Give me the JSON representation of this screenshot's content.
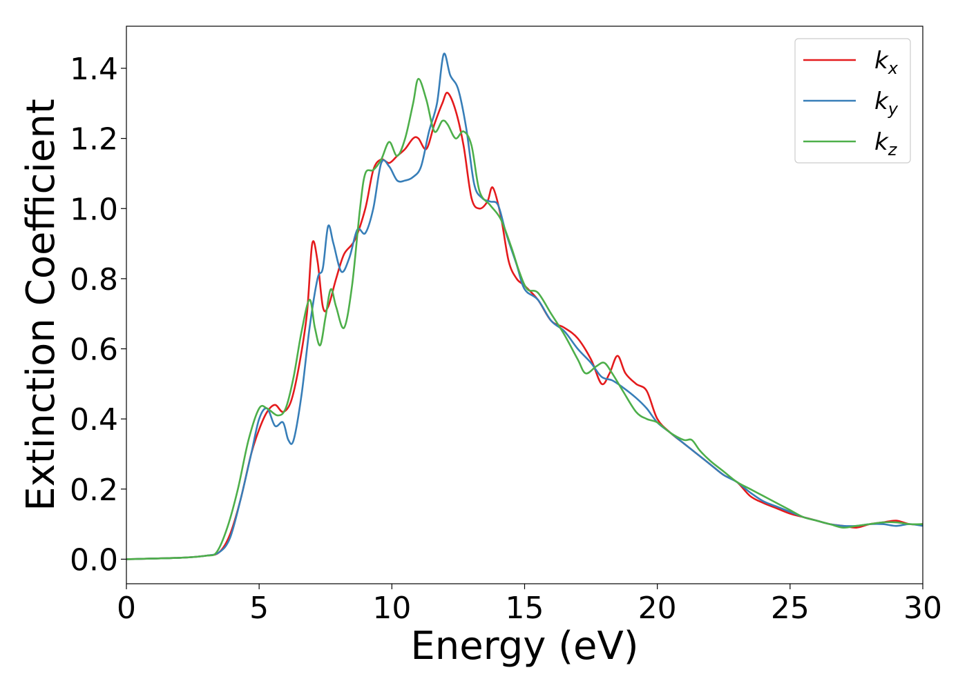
{
  "chart_data": {
    "type": "line",
    "title": "",
    "xlabel": "Energy (eV)",
    "ylabel": "Extinction Coefficient",
    "xlim": [
      0,
      30
    ],
    "ylim": [
      -0.07,
      1.52
    ],
    "xticks": [
      0,
      5,
      10,
      15,
      20,
      25,
      30
    ],
    "xtick_labels": [
      "0",
      "5",
      "10",
      "15",
      "20",
      "25",
      "30"
    ],
    "yticks": [
      0.0,
      0.2,
      0.4,
      0.6,
      0.8,
      1.0,
      1.2,
      1.4
    ],
    "ytick_labels": [
      "0.0",
      "0.2",
      "0.4",
      "0.6",
      "0.8",
      "1.0",
      "1.2",
      "1.4"
    ],
    "grid": false,
    "legend": {
      "placement": "top-right"
    },
    "series": [
      {
        "name": "k_x",
        "label_main": "k",
        "label_sub": "x",
        "color": "#e41a1c",
        "points": [
          [
            0,
            0
          ],
          [
            2,
            0.004
          ],
          [
            3,
            0.01
          ],
          [
            3.5,
            0.02
          ],
          [
            3.9,
            0.07
          ],
          [
            4.3,
            0.17
          ],
          [
            4.7,
            0.3
          ],
          [
            5.0,
            0.37
          ],
          [
            5.3,
            0.42
          ],
          [
            5.6,
            0.44
          ],
          [
            5.9,
            0.42
          ],
          [
            6.2,
            0.45
          ],
          [
            6.5,
            0.55
          ],
          [
            6.8,
            0.7
          ],
          [
            7.0,
            0.9
          ],
          [
            7.2,
            0.85
          ],
          [
            7.4,
            0.72
          ],
          [
            7.6,
            0.72
          ],
          [
            7.9,
            0.8
          ],
          [
            8.2,
            0.87
          ],
          [
            8.6,
            0.91
          ],
          [
            9.0,
            1.0
          ],
          [
            9.3,
            1.11
          ],
          [
            9.6,
            1.14
          ],
          [
            9.9,
            1.13
          ],
          [
            10.2,
            1.15
          ],
          [
            10.5,
            1.17
          ],
          [
            10.8,
            1.2
          ],
          [
            11.0,
            1.2
          ],
          [
            11.3,
            1.17
          ],
          [
            11.6,
            1.24
          ],
          [
            11.9,
            1.3
          ],
          [
            12.1,
            1.33
          ],
          [
            12.4,
            1.28
          ],
          [
            12.7,
            1.18
          ],
          [
            13.0,
            1.03
          ],
          [
            13.3,
            1.0
          ],
          [
            13.6,
            1.02
          ],
          [
            13.8,
            1.06
          ],
          [
            14.1,
            0.98
          ],
          [
            14.4,
            0.85
          ],
          [
            14.7,
            0.8
          ],
          [
            15.0,
            0.78
          ],
          [
            15.5,
            0.74
          ],
          [
            16.0,
            0.68
          ],
          [
            16.5,
            0.66
          ],
          [
            17.0,
            0.63
          ],
          [
            17.5,
            0.57
          ],
          [
            17.9,
            0.5
          ],
          [
            18.2,
            0.53
          ],
          [
            18.5,
            0.58
          ],
          [
            18.8,
            0.53
          ],
          [
            19.2,
            0.5
          ],
          [
            19.6,
            0.48
          ],
          [
            20.0,
            0.4
          ],
          [
            20.5,
            0.36
          ],
          [
            21.0,
            0.33
          ],
          [
            21.5,
            0.3
          ],
          [
            22.0,
            0.27
          ],
          [
            22.5,
            0.24
          ],
          [
            23.0,
            0.22
          ],
          [
            23.5,
            0.18
          ],
          [
            24.0,
            0.16
          ],
          [
            24.5,
            0.145
          ],
          [
            25.0,
            0.13
          ],
          [
            25.5,
            0.12
          ],
          [
            26.0,
            0.11
          ],
          [
            26.5,
            0.1
          ],
          [
            27.0,
            0.095
          ],
          [
            27.5,
            0.09
          ],
          [
            28.0,
            0.1
          ],
          [
            28.5,
            0.105
          ],
          [
            29.0,
            0.11
          ],
          [
            29.5,
            0.1
          ],
          [
            30.0,
            0.1
          ]
        ]
      },
      {
        "name": "k_y",
        "label_main": "k",
        "label_sub": "y",
        "color": "#377eb8",
        "points": [
          [
            0,
            0
          ],
          [
            2,
            0.004
          ],
          [
            3,
            0.01
          ],
          [
            3.5,
            0.02
          ],
          [
            3.9,
            0.06
          ],
          [
            4.3,
            0.17
          ],
          [
            4.7,
            0.3
          ],
          [
            5.0,
            0.4
          ],
          [
            5.3,
            0.43
          ],
          [
            5.6,
            0.38
          ],
          [
            5.9,
            0.39
          ],
          [
            6.1,
            0.34
          ],
          [
            6.3,
            0.34
          ],
          [
            6.6,
            0.47
          ],
          [
            6.9,
            0.66
          ],
          [
            7.2,
            0.8
          ],
          [
            7.4,
            0.83
          ],
          [
            7.6,
            0.95
          ],
          [
            7.8,
            0.9
          ],
          [
            8.1,
            0.82
          ],
          [
            8.4,
            0.86
          ],
          [
            8.7,
            0.94
          ],
          [
            9.0,
            0.93
          ],
          [
            9.3,
            1.0
          ],
          [
            9.6,
            1.13
          ],
          [
            9.9,
            1.12
          ],
          [
            10.2,
            1.08
          ],
          [
            10.5,
            1.08
          ],
          [
            10.8,
            1.09
          ],
          [
            11.1,
            1.12
          ],
          [
            11.4,
            1.22
          ],
          [
            11.7,
            1.3
          ],
          [
            11.95,
            1.44
          ],
          [
            12.2,
            1.38
          ],
          [
            12.5,
            1.34
          ],
          [
            12.8,
            1.23
          ],
          [
            13.1,
            1.07
          ],
          [
            13.4,
            1.03
          ],
          [
            13.7,
            1.02
          ],
          [
            14.0,
            1.01
          ],
          [
            14.3,
            0.93
          ],
          [
            14.7,
            0.84
          ],
          [
            15.0,
            0.77
          ],
          [
            15.5,
            0.74
          ],
          [
            16.0,
            0.68
          ],
          [
            16.5,
            0.65
          ],
          [
            17.0,
            0.6
          ],
          [
            17.5,
            0.56
          ],
          [
            17.9,
            0.52
          ],
          [
            18.3,
            0.51
          ],
          [
            18.7,
            0.49
          ],
          [
            19.2,
            0.46
          ],
          [
            19.6,
            0.43
          ],
          [
            20.0,
            0.39
          ],
          [
            20.5,
            0.36
          ],
          [
            21.0,
            0.33
          ],
          [
            21.5,
            0.3
          ],
          [
            22.0,
            0.27
          ],
          [
            22.5,
            0.24
          ],
          [
            23.0,
            0.22
          ],
          [
            23.5,
            0.19
          ],
          [
            24.0,
            0.165
          ],
          [
            24.5,
            0.15
          ],
          [
            25.0,
            0.135
          ],
          [
            25.5,
            0.12
          ],
          [
            26.0,
            0.11
          ],
          [
            26.5,
            0.1
          ],
          [
            27.0,
            0.095
          ],
          [
            27.5,
            0.095
          ],
          [
            28.0,
            0.1
          ],
          [
            28.5,
            0.1
          ],
          [
            29.0,
            0.095
          ],
          [
            29.5,
            0.1
          ],
          [
            30.0,
            0.095
          ]
        ]
      },
      {
        "name": "k_z",
        "label_main": "k",
        "label_sub": "z",
        "color": "#4daf4a",
        "points": [
          [
            0,
            0
          ],
          [
            2,
            0.004
          ],
          [
            3,
            0.01
          ],
          [
            3.4,
            0.02
          ],
          [
            3.8,
            0.09
          ],
          [
            4.2,
            0.2
          ],
          [
            4.6,
            0.34
          ],
          [
            5.0,
            0.43
          ],
          [
            5.3,
            0.43
          ],
          [
            5.7,
            0.41
          ],
          [
            6.0,
            0.43
          ],
          [
            6.3,
            0.52
          ],
          [
            6.6,
            0.65
          ],
          [
            6.9,
            0.74
          ],
          [
            7.1,
            0.66
          ],
          [
            7.3,
            0.61
          ],
          [
            7.5,
            0.69
          ],
          [
            7.7,
            0.77
          ],
          [
            7.9,
            0.72
          ],
          [
            8.2,
            0.66
          ],
          [
            8.5,
            0.78
          ],
          [
            8.8,
            1.0
          ],
          [
            9.0,
            1.1
          ],
          [
            9.3,
            1.11
          ],
          [
            9.6,
            1.14
          ],
          [
            9.9,
            1.19
          ],
          [
            10.2,
            1.15
          ],
          [
            10.5,
            1.2
          ],
          [
            10.8,
            1.3
          ],
          [
            11.0,
            1.37
          ],
          [
            11.3,
            1.31
          ],
          [
            11.6,
            1.22
          ],
          [
            11.9,
            1.25
          ],
          [
            12.1,
            1.24
          ],
          [
            12.4,
            1.2
          ],
          [
            12.7,
            1.22
          ],
          [
            13.0,
            1.18
          ],
          [
            13.3,
            1.05
          ],
          [
            13.7,
            1.01
          ],
          [
            14.1,
            0.97
          ],
          [
            14.5,
            0.89
          ],
          [
            14.8,
            0.82
          ],
          [
            15.1,
            0.77
          ],
          [
            15.5,
            0.76
          ],
          [
            16.0,
            0.7
          ],
          [
            16.5,
            0.64
          ],
          [
            17.0,
            0.57
          ],
          [
            17.3,
            0.53
          ],
          [
            17.7,
            0.55
          ],
          [
            18.0,
            0.56
          ],
          [
            18.3,
            0.53
          ],
          [
            18.7,
            0.48
          ],
          [
            19.2,
            0.42
          ],
          [
            19.6,
            0.4
          ],
          [
            20.0,
            0.39
          ],
          [
            20.5,
            0.36
          ],
          [
            21.0,
            0.34
          ],
          [
            21.3,
            0.34
          ],
          [
            21.6,
            0.31
          ],
          [
            22.0,
            0.28
          ],
          [
            22.5,
            0.25
          ],
          [
            23.0,
            0.22
          ],
          [
            23.5,
            0.2
          ],
          [
            24.0,
            0.18
          ],
          [
            24.5,
            0.16
          ],
          [
            25.0,
            0.14
          ],
          [
            25.5,
            0.12
          ],
          [
            26.0,
            0.11
          ],
          [
            26.5,
            0.1
          ],
          [
            27.0,
            0.09
          ],
          [
            27.5,
            0.095
          ],
          [
            28.0,
            0.1
          ],
          [
            28.5,
            0.105
          ],
          [
            29.0,
            0.105
          ],
          [
            29.5,
            0.1
          ],
          [
            30.0,
            0.1
          ]
        ]
      }
    ]
  }
}
